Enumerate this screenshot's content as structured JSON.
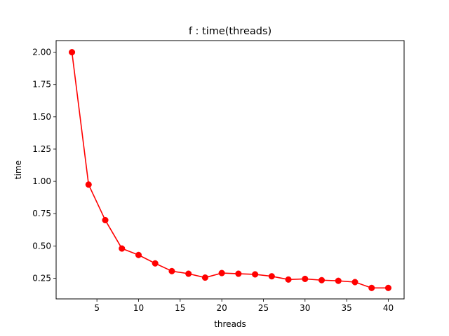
{
  "chart_data": {
    "type": "line",
    "title": "f : time(threads)",
    "xlabel": "threads",
    "ylabel": "time",
    "xlim": [
      0.1,
      41.9
    ],
    "ylim": [
      0.09,
      2.09
    ],
    "xticks": [
      5,
      10,
      15,
      20,
      25,
      30,
      35,
      40
    ],
    "xtick_labels": [
      "5",
      "10",
      "15",
      "20",
      "25",
      "30",
      "35",
      "40"
    ],
    "yticks": [
      0.25,
      0.5,
      0.75,
      1.0,
      1.25,
      1.5,
      1.75,
      2.0
    ],
    "ytick_labels": [
      "0.25",
      "0.50",
      "0.75",
      "1.00",
      "1.25",
      "1.50",
      "1.75",
      "2.00"
    ],
    "grid": false,
    "series": [
      {
        "color": "#ff0000",
        "marker": "circle",
        "x": [
          2,
          4,
          6,
          8,
          10,
          12,
          14,
          16,
          18,
          20,
          22,
          24,
          26,
          28,
          30,
          32,
          34,
          36,
          38,
          40
        ],
        "values": [
          2.0,
          0.975,
          0.7,
          0.48,
          0.43,
          0.365,
          0.305,
          0.285,
          0.255,
          0.29,
          0.285,
          0.28,
          0.265,
          0.24,
          0.245,
          0.235,
          0.23,
          0.22,
          0.175,
          0.175
        ]
      }
    ]
  }
}
